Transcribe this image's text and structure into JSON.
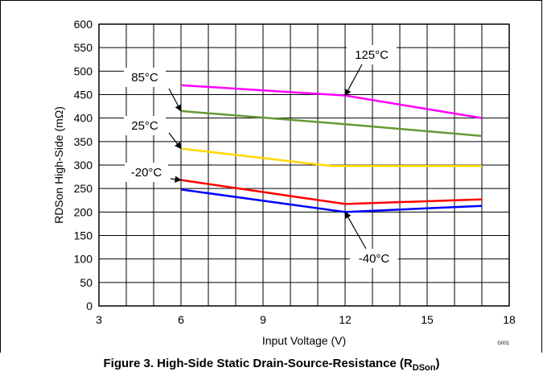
{
  "caption": {
    "main": "Figure 3. High-Side Static Drain-Source-Resistance (R",
    "sub": "DSon",
    "close": ")"
  },
  "figure_code": "G001",
  "chart_data": {
    "type": "line",
    "title": "",
    "xlabel": "Input Voltage (V)",
    "ylabel": "RDSon High-Side (mΩ)",
    "xlim": [
      3,
      18
    ],
    "ylim": [
      0,
      600
    ],
    "xticks": [
      3,
      6,
      9,
      12,
      15,
      18
    ],
    "yticks": [
      0,
      50,
      100,
      150,
      200,
      250,
      300,
      350,
      400,
      450,
      500,
      550,
      600
    ],
    "grid": true,
    "series": [
      {
        "name": "125°C",
        "color": "#ff00ff",
        "x": [
          6,
          12,
          17
        ],
        "y": [
          470,
          448,
          400
        ]
      },
      {
        "name": "85°C",
        "color": "#669933",
        "x": [
          6,
          12,
          17
        ],
        "y": [
          415,
          387,
          362
        ]
      },
      {
        "name": "25°C",
        "color": "#ffd700",
        "x": [
          6,
          11.5,
          17
        ],
        "y": [
          335,
          298,
          298
        ]
      },
      {
        "name": "-20°C",
        "color": "#ff0000",
        "x": [
          6,
          12,
          17
        ],
        "y": [
          268,
          217,
          227
        ]
      },
      {
        "name": "-40°C",
        "color": "#0000ff",
        "x": [
          6,
          12,
          17
        ],
        "y": [
          248,
          200,
          213
        ]
      }
    ],
    "annotations": [
      {
        "series": "125°C",
        "text": "125°C",
        "target": [
          12,
          448
        ]
      },
      {
        "series": "85°C",
        "text": "85°C",
        "target": [
          6,
          415
        ]
      },
      {
        "series": "25°C",
        "text": "25°C",
        "target": [
          6,
          335
        ]
      },
      {
        "series": "-20°C",
        "text": "-20°C",
        "target": [
          6,
          268
        ]
      },
      {
        "series": "-40°C",
        "text": "-40°C",
        "target": [
          12,
          200
        ]
      }
    ]
  }
}
